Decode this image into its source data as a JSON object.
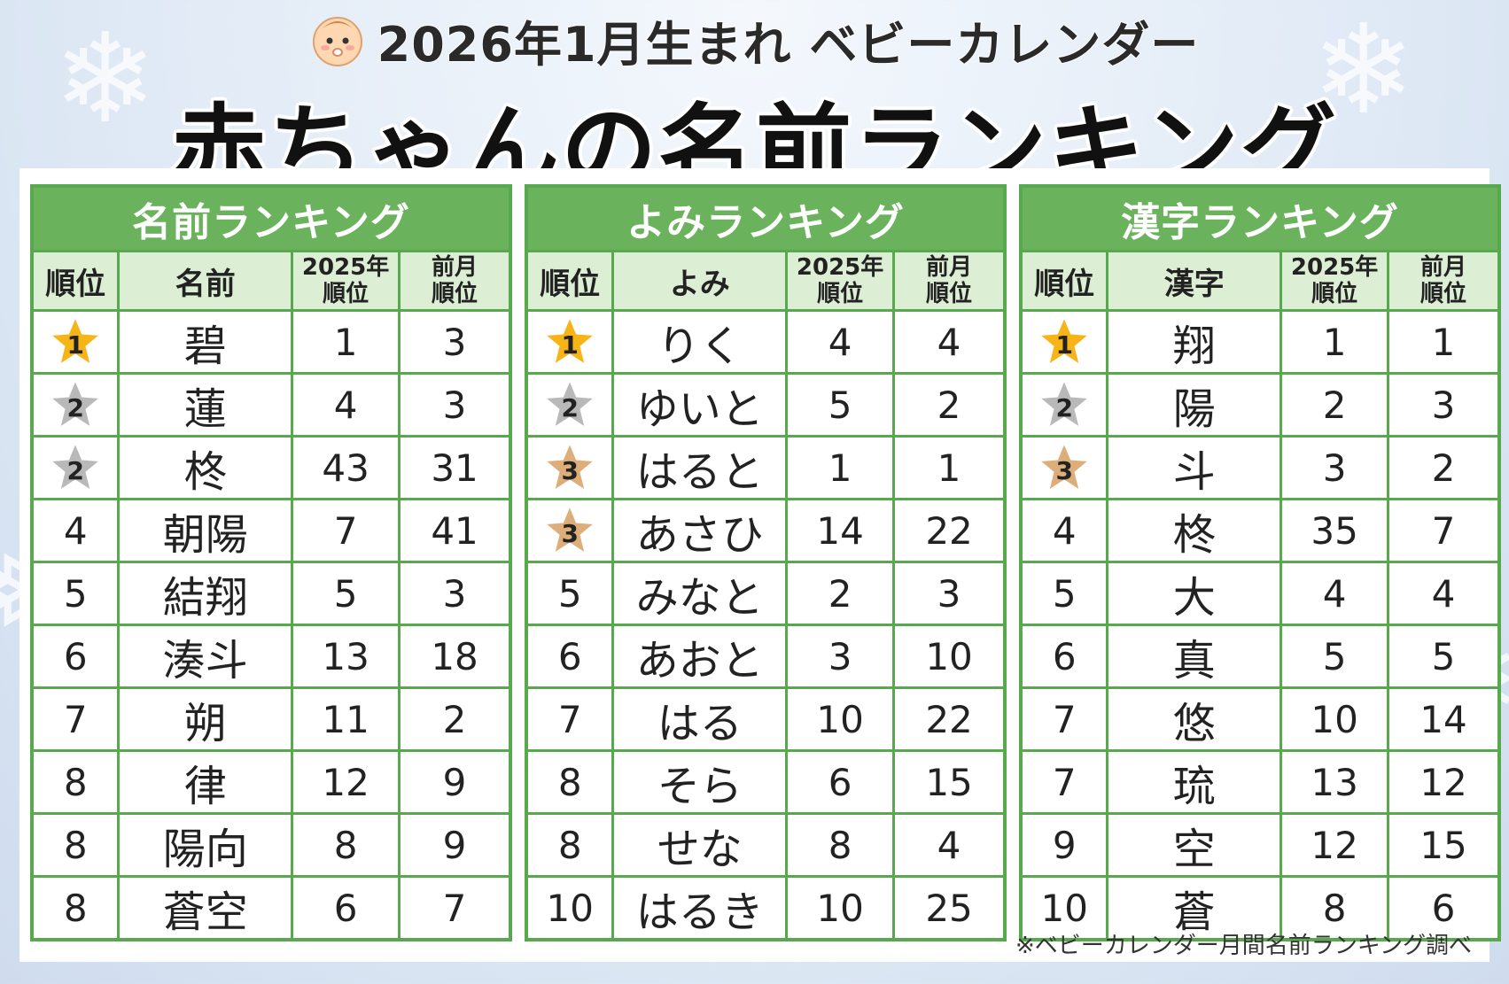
{
  "header": {
    "baby_icon": "baby-face-icon",
    "subtitle": "2026年1月生まれ ベビーカレンダー",
    "title": "赤ちゃんの名前ランキング"
  },
  "colors": {
    "table_border": "#58a84d",
    "table_title_bg": "#6bb25c",
    "header_row_bg": "#dcefd4",
    "star_gold": "#f6b417",
    "star_silver": "#b9b9b9",
    "star_bronze": "#deae7a"
  },
  "tables": [
    {
      "title": "名前ランキング",
      "headers": [
        "順位",
        "名前",
        "2025年\n順位",
        "前月\n順位"
      ],
      "rows": [
        {
          "rank": "1",
          "star": "gold",
          "name": "碧",
          "y2025": "1",
          "prev": "3"
        },
        {
          "rank": "2",
          "star": "silver",
          "name": "蓮",
          "y2025": "4",
          "prev": "3"
        },
        {
          "rank": "2",
          "star": "silver",
          "name": "柊",
          "y2025": "43",
          "prev": "31"
        },
        {
          "rank": "4",
          "star": "",
          "name": "朝陽",
          "y2025": "7",
          "prev": "41"
        },
        {
          "rank": "5",
          "star": "",
          "name": "結翔",
          "y2025": "5",
          "prev": "3"
        },
        {
          "rank": "6",
          "star": "",
          "name": "湊斗",
          "y2025": "13",
          "prev": "18"
        },
        {
          "rank": "7",
          "star": "",
          "name": "朔",
          "y2025": "11",
          "prev": "2"
        },
        {
          "rank": "8",
          "star": "",
          "name": "律",
          "y2025": "12",
          "prev": "9"
        },
        {
          "rank": "8",
          "star": "",
          "name": "陽向",
          "y2025": "8",
          "prev": "9"
        },
        {
          "rank": "8",
          "star": "",
          "name": "蒼空",
          "y2025": "6",
          "prev": "7"
        }
      ]
    },
    {
      "title": "よみランキング",
      "headers": [
        "順位",
        "よみ",
        "2025年\n順位",
        "前月\n順位"
      ],
      "rows": [
        {
          "rank": "1",
          "star": "gold",
          "name": "りく",
          "y2025": "4",
          "prev": "4"
        },
        {
          "rank": "2",
          "star": "silver",
          "name": "ゆいと",
          "y2025": "5",
          "prev": "2"
        },
        {
          "rank": "3",
          "star": "bronze",
          "name": "はると",
          "y2025": "1",
          "prev": "1"
        },
        {
          "rank": "3",
          "star": "bronze",
          "name": "あさひ",
          "y2025": "14",
          "prev": "22"
        },
        {
          "rank": "5",
          "star": "",
          "name": "みなと",
          "y2025": "2",
          "prev": "3"
        },
        {
          "rank": "6",
          "star": "",
          "name": "あおと",
          "y2025": "3",
          "prev": "10"
        },
        {
          "rank": "7",
          "star": "",
          "name": "はる",
          "y2025": "10",
          "prev": "22"
        },
        {
          "rank": "8",
          "star": "",
          "name": "そら",
          "y2025": "6",
          "prev": "15"
        },
        {
          "rank": "8",
          "star": "",
          "name": "せな",
          "y2025": "8",
          "prev": "4"
        },
        {
          "rank": "10",
          "star": "",
          "name": "はるき",
          "y2025": "10",
          "prev": "25"
        }
      ]
    },
    {
      "title": "漢字ランキング",
      "headers": [
        "順位",
        "漢字",
        "2025年\n順位",
        "前月\n順位"
      ],
      "rows": [
        {
          "rank": "1",
          "star": "gold",
          "name": "翔",
          "y2025": "1",
          "prev": "1"
        },
        {
          "rank": "2",
          "star": "silver",
          "name": "陽",
          "y2025": "2",
          "prev": "3"
        },
        {
          "rank": "3",
          "star": "bronze",
          "name": "斗",
          "y2025": "3",
          "prev": "2"
        },
        {
          "rank": "4",
          "star": "",
          "name": "柊",
          "y2025": "35",
          "prev": "7"
        },
        {
          "rank": "5",
          "star": "",
          "name": "大",
          "y2025": "4",
          "prev": "4"
        },
        {
          "rank": "6",
          "star": "",
          "name": "真",
          "y2025": "5",
          "prev": "5"
        },
        {
          "rank": "7",
          "star": "",
          "name": "悠",
          "y2025": "10",
          "prev": "14"
        },
        {
          "rank": "7",
          "star": "",
          "name": "琉",
          "y2025": "13",
          "prev": "12"
        },
        {
          "rank": "9",
          "star": "",
          "name": "空",
          "y2025": "12",
          "prev": "15"
        },
        {
          "rank": "10",
          "star": "",
          "name": "蒼",
          "y2025": "8",
          "prev": "6"
        }
      ]
    }
  ],
  "footnote": "※ベビーカレンダー月間名前ランキング調べ"
}
